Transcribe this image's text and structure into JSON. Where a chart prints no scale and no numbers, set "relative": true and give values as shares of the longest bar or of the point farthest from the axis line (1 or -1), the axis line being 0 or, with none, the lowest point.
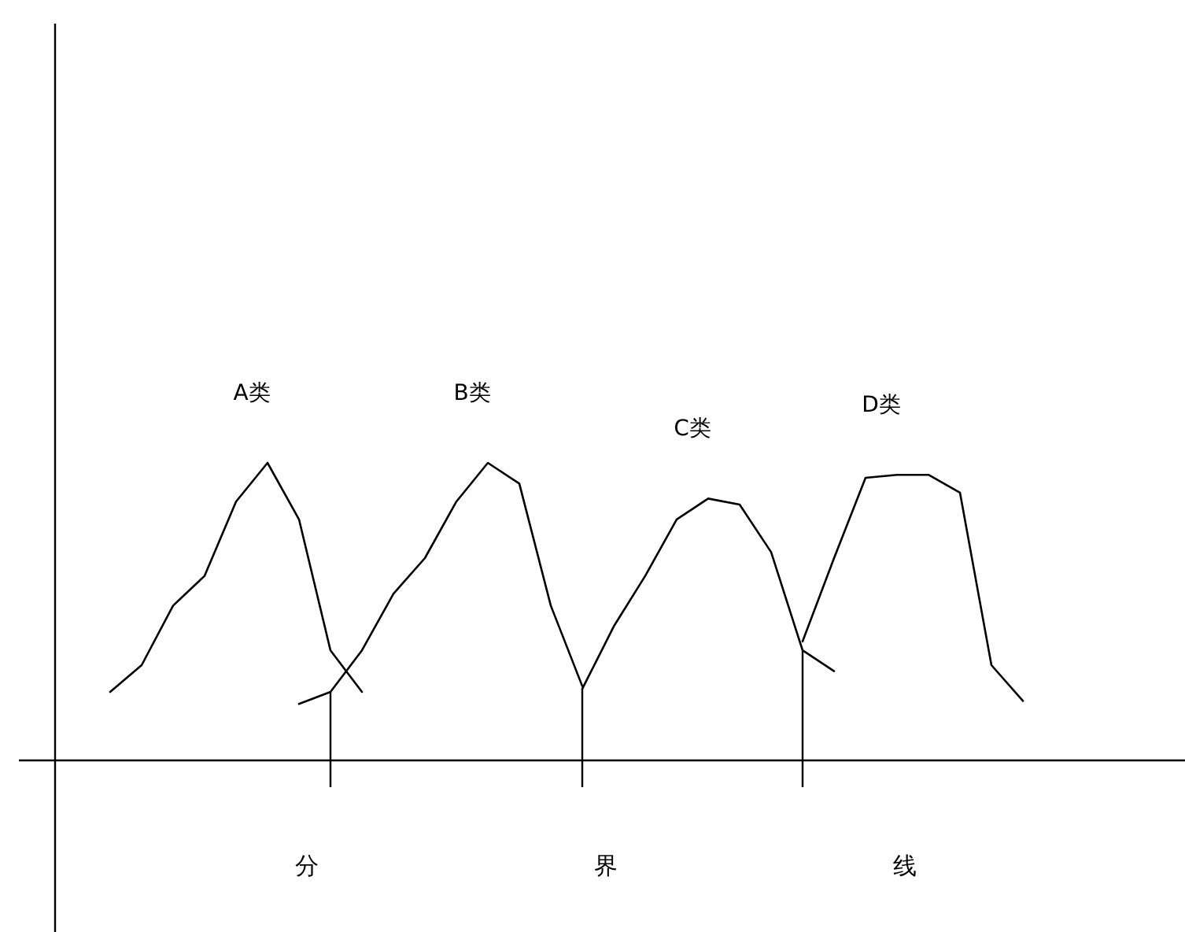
{
  "chart_data": {
    "type": "line",
    "relative": true,
    "categories": [
      null,
      null,
      null,
      null,
      null,
      null,
      null,
      null,
      null,
      null,
      null,
      null,
      null,
      null,
      null,
      null,
      null,
      null,
      null,
      null,
      null,
      null,
      null,
      null,
      null,
      null,
      null,
      null,
      null,
      null
    ],
    "series": [
      {
        "name": "A类",
        "color": "#000000",
        "values": [
          0.23,
          0.32,
          0.52,
          0.62,
          0.87,
          1.0,
          0.81,
          0.37,
          0.23,
          null,
          null,
          null,
          null,
          null,
          null,
          null,
          null,
          null,
          null,
          null,
          null,
          null,
          null,
          null,
          null,
          null,
          null,
          null,
          null,
          null
        ]
      },
      {
        "name": "B类",
        "color": "#000000",
        "values": [
          null,
          null,
          null,
          null,
          null,
          null,
          0.19,
          0.23,
          0.37,
          0.56,
          0.68,
          0.87,
          1.0,
          0.93,
          0.52,
          0.25,
          null,
          null,
          null,
          null,
          null,
          null,
          null,
          null,
          null,
          null,
          null,
          null,
          null,
          null
        ]
      },
      {
        "name": "C类",
        "color": "#000000",
        "values": [
          null,
          null,
          null,
          null,
          null,
          null,
          null,
          null,
          null,
          null,
          null,
          null,
          null,
          null,
          null,
          0.24,
          0.45,
          0.62,
          0.81,
          0.88,
          0.86,
          0.7,
          0.37,
          0.3,
          null,
          null,
          null,
          null,
          null,
          null
        ]
      },
      {
        "name": "D类",
        "color": "#000000",
        "values": [
          null,
          null,
          null,
          null,
          null,
          null,
          null,
          null,
          null,
          null,
          null,
          null,
          null,
          null,
          null,
          null,
          null,
          null,
          null,
          null,
          null,
          null,
          0.4,
          0.68,
          0.95,
          0.96,
          0.96,
          0.9,
          0.32,
          0.2
        ]
      }
    ],
    "annotations": [
      "分",
      "界",
      "线"
    ]
  }
}
